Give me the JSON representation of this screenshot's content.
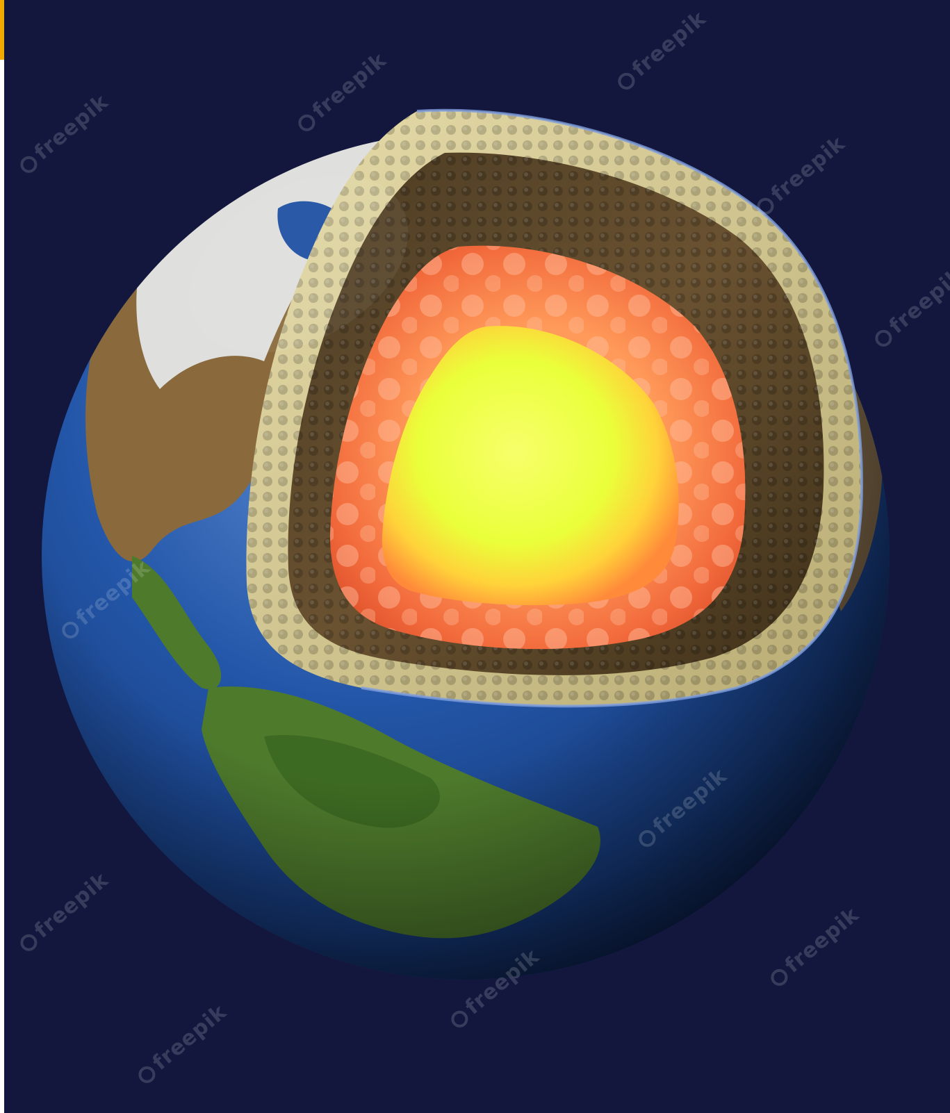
{
  "image": {
    "subject": "earth-cutaway",
    "colors": {
      "background": "#13173d",
      "ocean": "#1d4fa3",
      "land_green": "#4e7a2c",
      "land_brown": "#8a6a3c",
      "ice": "#e8ecef",
      "crust": "#d8cf9a",
      "mantle_upper": "#5b4629",
      "mantle_lower": "#f06a3a",
      "outer_core": "#ff8a50",
      "inner_core": "#f4ff4a"
    },
    "watermark_text": "freepik",
    "watermarks": [
      {
        "text": "freepik"
      },
      {
        "text": "freepik"
      },
      {
        "text": "freepik"
      },
      {
        "text": "freepik"
      },
      {
        "text": "freepik"
      },
      {
        "text": "freepik"
      },
      {
        "text": "freepik"
      },
      {
        "text": "freepik"
      },
      {
        "text": "freepik"
      },
      {
        "text": "freepik"
      },
      {
        "text": "freepik"
      }
    ]
  }
}
